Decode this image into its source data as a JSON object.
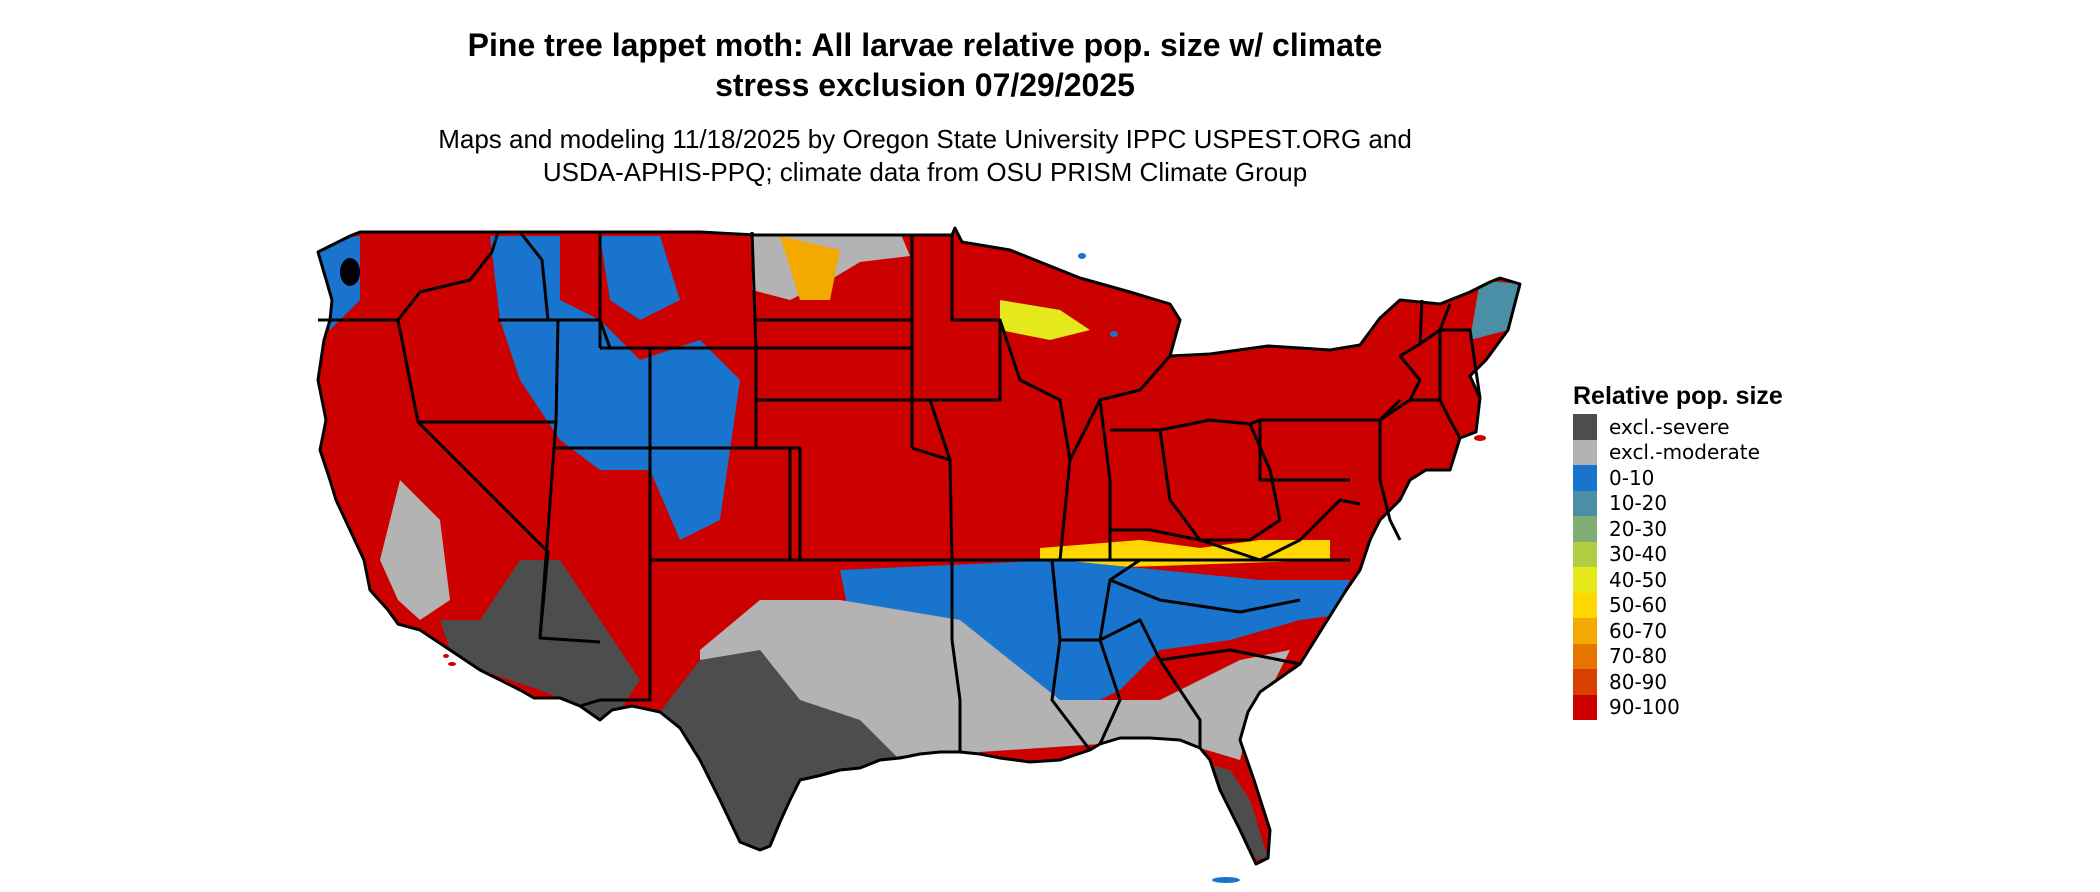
{
  "title": {
    "line1": "Pine tree lappet moth: All larvae relative pop. size w/ climate",
    "line2": "stress exclusion 07/29/2025"
  },
  "subtitle": {
    "line1": "Maps and modeling 11/18/2025 by Oregon State University IPPC USPEST.ORG and",
    "line2": "USDA-APHIS-PPQ; climate data from OSU PRISM Climate Group"
  },
  "legend": {
    "title": "Relative pop. size",
    "items": [
      {
        "label": "excl.-severe",
        "color": "#4d4d4d"
      },
      {
        "label": "excl.-moderate",
        "color": "#b3b3b3"
      },
      {
        "label": "0-10",
        "color": "#1874cd"
      },
      {
        "label": "10-20",
        "color": "#4a8fa5"
      },
      {
        "label": "20-30",
        "color": "#7eae72"
      },
      {
        "label": "30-40",
        "color": "#b3cd42"
      },
      {
        "label": "40-50",
        "color": "#e5e81a"
      },
      {
        "label": "50-60",
        "color": "#ffd700"
      },
      {
        "label": "60-70",
        "color": "#f4a900"
      },
      {
        "label": "70-80",
        "color": "#e87400"
      },
      {
        "label": "80-90",
        "color": "#d93f00"
      },
      {
        "label": "90-100",
        "color": "#cd0000"
      }
    ]
  },
  "map": {
    "region": "contiguous United States",
    "border_color": "#000000"
  }
}
